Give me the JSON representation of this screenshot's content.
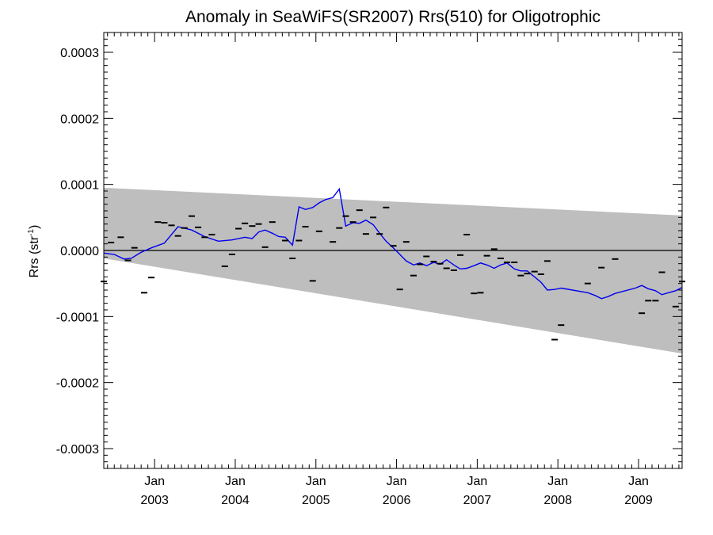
{
  "chart_data": {
    "type": "line",
    "title": "Anomaly in SeaWiFS(SR2007) Rrs(510) for Oligotrophic",
    "xlabel": "",
    "ylabel": {
      "base": "Rrs (str",
      "sup": "-1",
      "close": ")"
    },
    "xlim": [
      2002.37,
      2009.54
    ],
    "ylim": [
      -0.00033,
      0.00033
    ],
    "yticks": [
      {
        "value": 0.0003,
        "label": "0.0003"
      },
      {
        "value": 0.0002,
        "label": "0.0002"
      },
      {
        "value": 0.0001,
        "label": "0.0001"
      },
      {
        "value": 0.0,
        "label": "0.0000"
      },
      {
        "value": -0.0001,
        "label": "-0.0001"
      },
      {
        "value": -0.0002,
        "label": "-0.0002"
      },
      {
        "value": -0.0003,
        "label": "-0.0003"
      }
    ],
    "xticks": [
      {
        "value": 2003.0,
        "month": "Jan",
        "year": "2003"
      },
      {
        "value": 2004.0,
        "month": "Jan",
        "year": "2004"
      },
      {
        "value": 2005.0,
        "month": "Jan",
        "year": "2005"
      },
      {
        "value": 2006.0,
        "month": "Jan",
        "year": "2006"
      },
      {
        "value": 2007.0,
        "month": "Jan",
        "year": "2007"
      },
      {
        "value": 2008.0,
        "month": "Jan",
        "year": "2008"
      },
      {
        "value": 2009.0,
        "month": "Jan",
        "year": "2009"
      }
    ],
    "band": {
      "x": [
        2002.37,
        2009.54
      ],
      "upper": [
        9.5e-05,
        5.3e-05
      ],
      "lower": [
        -1.2e-05,
        -0.000156
      ],
      "color": "#bebebe"
    },
    "zero_line": 0.0,
    "series": [
      {
        "type": "line",
        "color": "#0000ee",
        "points": [
          [
            2002.37,
            -4e-06
          ],
          [
            2002.5,
            -6e-06
          ],
          [
            2002.62,
            -1.3e-05
          ],
          [
            2002.71,
            -1.2e-05
          ],
          [
            2002.83,
            -3e-06
          ],
          [
            2002.96,
            4e-06
          ],
          [
            2003.12,
            1.1e-05
          ],
          [
            2003.29,
            3.6e-05
          ],
          [
            2003.46,
            3.1e-05
          ],
          [
            2003.62,
            2.1e-05
          ],
          [
            2003.79,
            1.4e-05
          ],
          [
            2003.96,
            1.6e-05
          ],
          [
            2004.12,
            2e-05
          ],
          [
            2004.21,
            1.8e-05
          ],
          [
            2004.29,
            2.8e-05
          ],
          [
            2004.37,
            3.1e-05
          ],
          [
            2004.46,
            2.6e-05
          ],
          [
            2004.54,
            2.1e-05
          ],
          [
            2004.62,
            2e-05
          ],
          [
            2004.71,
            8e-06
          ],
          [
            2004.79,
            6.6e-05
          ],
          [
            2004.87,
            6.2e-05
          ],
          [
            2004.96,
            6.5e-05
          ],
          [
            2005.04,
            7.2e-05
          ],
          [
            2005.12,
            7.7e-05
          ],
          [
            2005.21,
            8e-05
          ],
          [
            2005.29,
            9.3e-05
          ],
          [
            2005.37,
            3.7e-05
          ],
          [
            2005.46,
            4.2e-05
          ],
          [
            2005.54,
            4.1e-05
          ],
          [
            2005.62,
            4.6e-05
          ],
          [
            2005.71,
            3.9e-05
          ],
          [
            2005.79,
            2.6e-05
          ],
          [
            2005.87,
            1.4e-05
          ],
          [
            2005.96,
            4e-06
          ],
          [
            2006.04,
            -6e-06
          ],
          [
            2006.12,
            -1.6e-05
          ],
          [
            2006.21,
            -2.2e-05
          ],
          [
            2006.29,
            -1.9e-05
          ],
          [
            2006.37,
            -2.3e-05
          ],
          [
            2006.46,
            -1.8e-05
          ],
          [
            2006.54,
            -2.1e-05
          ],
          [
            2006.62,
            -1.4e-05
          ],
          [
            2006.71,
            -2.2e-05
          ],
          [
            2006.79,
            -2.8e-05
          ],
          [
            2006.87,
            -2.7e-05
          ],
          [
            2006.96,
            -2.3e-05
          ],
          [
            2007.04,
            -1.9e-05
          ],
          [
            2007.12,
            -2.2e-05
          ],
          [
            2007.21,
            -2.7e-05
          ],
          [
            2007.29,
            -2.2e-05
          ],
          [
            2007.37,
            -1.9e-05
          ],
          [
            2007.46,
            -2.8e-05
          ],
          [
            2007.54,
            -3.1e-05
          ],
          [
            2007.62,
            -3.1e-05
          ],
          [
            2007.71,
            -4e-05
          ],
          [
            2007.79,
            -4.8e-05
          ],
          [
            2007.87,
            -6e-05
          ],
          [
            2007.96,
            -5.9e-05
          ],
          [
            2008.04,
            -5.7e-05
          ],
          [
            2008.37,
            -6.4e-05
          ],
          [
            2008.46,
            -6.8e-05
          ],
          [
            2008.54,
            -7.3e-05
          ],
          [
            2008.62,
            -7e-05
          ],
          [
            2008.71,
            -6.5e-05
          ],
          [
            2008.96,
            -5.7e-05
          ],
          [
            2009.04,
            -5.3e-05
          ],
          [
            2009.12,
            -5.8e-05
          ],
          [
            2009.21,
            -6.1e-05
          ],
          [
            2009.29,
            -6.7e-05
          ],
          [
            2009.37,
            -6.4e-05
          ],
          [
            2009.46,
            -6.1e-05
          ],
          [
            2009.54,
            -5.6e-05
          ]
        ]
      },
      {
        "type": "scatter",
        "marker": "dash",
        "color": "#000000",
        "points": [
          [
            2002.37,
            -4.7e-05
          ],
          [
            2002.46,
            1.2e-05
          ],
          [
            2002.58,
            2e-05
          ],
          [
            2002.67,
            -1.5e-05
          ],
          [
            2002.75,
            4e-06
          ],
          [
            2002.87,
            -6.4e-05
          ],
          [
            2002.96,
            -4.1e-05
          ],
          [
            2003.04,
            4.3e-05
          ],
          [
            2003.12,
            4.2e-05
          ],
          [
            2003.21,
            3.8e-05
          ],
          [
            2003.29,
            2.2e-05
          ],
          [
            2003.37,
            3.4e-05
          ],
          [
            2003.46,
            5.2e-05
          ],
          [
            2003.54,
            3.5e-05
          ],
          [
            2003.62,
            2e-05
          ],
          [
            2003.71,
            2.4e-05
          ],
          [
            2003.87,
            -2.4e-05
          ],
          [
            2003.96,
            -6e-06
          ],
          [
            2004.04,
            3.3e-05
          ],
          [
            2004.12,
            4.1e-05
          ],
          [
            2004.21,
            3.7e-05
          ],
          [
            2004.29,
            4e-05
          ],
          [
            2004.37,
            5e-06
          ],
          [
            2004.46,
            4.3e-05
          ],
          [
            2004.62,
            1.5e-05
          ],
          [
            2004.71,
            -1.2e-05
          ],
          [
            2004.79,
            1.5e-05
          ],
          [
            2004.87,
            3.6e-05
          ],
          [
            2004.96,
            -4.6e-05
          ],
          [
            2005.04,
            2.9e-05
          ],
          [
            2005.21,
            1.3e-05
          ],
          [
            2005.29,
            3.4e-05
          ],
          [
            2005.37,
            5.2e-05
          ],
          [
            2005.46,
            4.3e-05
          ],
          [
            2005.54,
            6.1e-05
          ],
          [
            2005.62,
            2.5e-05
          ],
          [
            2005.71,
            5e-05
          ],
          [
            2005.79,
            2.5e-05
          ],
          [
            2005.87,
            6.5e-05
          ],
          [
            2005.96,
            7e-06
          ],
          [
            2006.04,
            -5.9e-05
          ],
          [
            2006.12,
            1.3e-05
          ],
          [
            2006.21,
            -3.8e-05
          ],
          [
            2006.29,
            -2.1e-05
          ],
          [
            2006.37,
            -9e-06
          ],
          [
            2006.46,
            -1.7e-05
          ],
          [
            2006.54,
            -2e-05
          ],
          [
            2006.62,
            -2.7e-05
          ],
          [
            2006.71,
            -3e-05
          ],
          [
            2006.79,
            -7e-06
          ],
          [
            2006.87,
            2.4e-05
          ],
          [
            2006.96,
            -6.5e-05
          ],
          [
            2007.04,
            -6.4e-05
          ],
          [
            2007.12,
            -8e-06
          ],
          [
            2007.21,
            2e-06
          ],
          [
            2007.29,
            -1.2e-05
          ],
          [
            2007.37,
            -1.8e-05
          ],
          [
            2007.46,
            -1.8e-05
          ],
          [
            2007.54,
            -3.8e-05
          ],
          [
            2007.62,
            -3.5e-05
          ],
          [
            2007.71,
            -3.2e-05
          ],
          [
            2007.79,
            -3.6e-05
          ],
          [
            2007.87,
            -1.6e-05
          ],
          [
            2007.96,
            -0.000135
          ],
          [
            2008.04,
            -0.000113
          ],
          [
            2008.37,
            -5e-05
          ],
          [
            2008.54,
            -2.6e-05
          ],
          [
            2008.71,
            -1.3e-05
          ],
          [
            2009.04,
            -9.5e-05
          ],
          [
            2009.12,
            -7.6e-05
          ],
          [
            2009.21,
            -7.6e-05
          ],
          [
            2009.29,
            -3.3e-05
          ],
          [
            2009.46,
            -8.5e-05
          ],
          [
            2009.54,
            -4.7e-05
          ]
        ]
      }
    ],
    "grid": false,
    "legend": "none"
  }
}
